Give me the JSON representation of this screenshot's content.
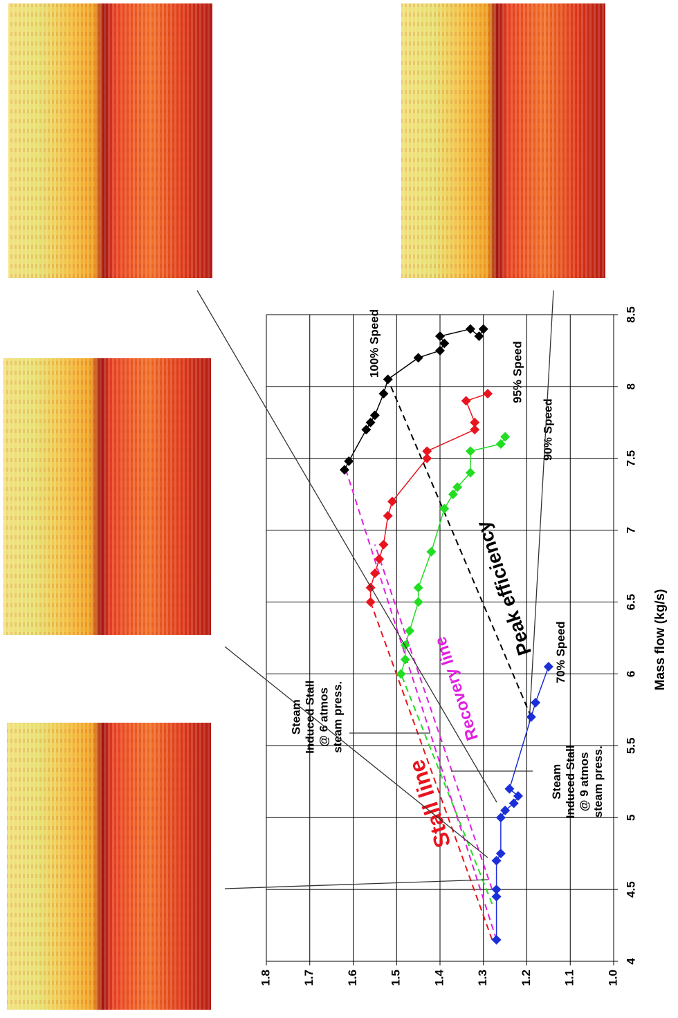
{
  "chart_data": {
    "type": "line",
    "x_label": "Mass flow (kg/s)",
    "xlim": [
      4,
      8.5
    ],
    "xticks": [
      4,
      4.5,
      5,
      5.5,
      6,
      6.5,
      7,
      7.5,
      8,
      8.5
    ],
    "ylim": [
      1.0,
      1.8
    ],
    "yticks": [
      {
        "value": 1.0,
        "label": "1.0"
      },
      1.1,
      1.2,
      1.3,
      1.4,
      1.5,
      1.6,
      1.7,
      1.8
    ],
    "grid": true,
    "series": [
      {
        "name": "100% Speed",
        "color": "#000000",
        "x": [
          7.42,
          7.48,
          7.7,
          7.75,
          7.8,
          7.95,
          8.05,
          8.2,
          8.25,
          8.3,
          8.35,
          8.4,
          8.35,
          8.4
        ],
        "values": [
          1.62,
          1.61,
          1.57,
          1.56,
          1.55,
          1.53,
          1.52,
          1.45,
          1.4,
          1.39,
          1.4,
          1.33,
          1.31,
          1.3
        ]
      },
      {
        "name": "95% Speed",
        "color": "#e8141e",
        "x": [
          6.5,
          6.6,
          6.7,
          6.8,
          6.9,
          7.1,
          7.2,
          7.5,
          7.55,
          7.7,
          7.75,
          7.9,
          7.95
        ],
        "values": [
          1.56,
          1.56,
          1.55,
          1.54,
          1.53,
          1.52,
          1.51,
          1.43,
          1.43,
          1.32,
          1.32,
          1.34,
          1.29
        ]
      },
      {
        "name": "90% Speed",
        "color": "#22dd22",
        "x": [
          6.0,
          6.1,
          6.2,
          6.3,
          6.5,
          6.6,
          6.85,
          7.15,
          7.25,
          7.3,
          7.4,
          7.55,
          7.6,
          7.65
        ],
        "values": [
          1.49,
          1.48,
          1.48,
          1.47,
          1.45,
          1.45,
          1.42,
          1.39,
          1.37,
          1.36,
          1.33,
          1.33,
          1.26,
          1.25
        ]
      },
      {
        "name": "70% Speed",
        "color": "#1a2fd8",
        "x": [
          4.15,
          4.45,
          4.5,
          4.7,
          4.75,
          5.0,
          5.05,
          5.1,
          5.15,
          5.2,
          5.7,
          5.8,
          6.05
        ],
        "values": [
          1.27,
          1.27,
          1.27,
          1.27,
          1.26,
          1.26,
          1.25,
          1.23,
          1.22,
          1.24,
          1.19,
          1.18,
          1.15
        ]
      }
    ],
    "reference_lines": [
      {
        "label": "Stall line",
        "color": "#e8141e",
        "x": [
          4.15,
          6.5
        ],
        "values": [
          1.28,
          1.56
        ]
      },
      {
        "color": "#22dd22",
        "x": [
          4.4,
          6.0
        ],
        "values": [
          1.28,
          1.49
        ]
      },
      {
        "label": "Recovery line",
        "color": "#e020e0",
        "x": [
          4.15,
          7.45
        ],
        "values": [
          1.27,
          1.62
        ]
      },
      {
        "color": "#e020e0",
        "x": [
          4.5,
          6.9
        ],
        "values": [
          1.28,
          1.55
        ]
      },
      {
        "label": "Peak efficiency",
        "color": "#000000",
        "x": [
          5.7,
          8.05
        ],
        "values": [
          1.19,
          1.52
        ]
      }
    ],
    "annotations": [
      {
        "lines": [
          "Steam",
          "Induced Stall",
          "@ 6 atmos",
          "steam press."
        ]
      },
      {
        "lines": [
          "Steam",
          "Induced Stall",
          "@ 9 atmos",
          "steam press."
        ]
      }
    ]
  }
}
